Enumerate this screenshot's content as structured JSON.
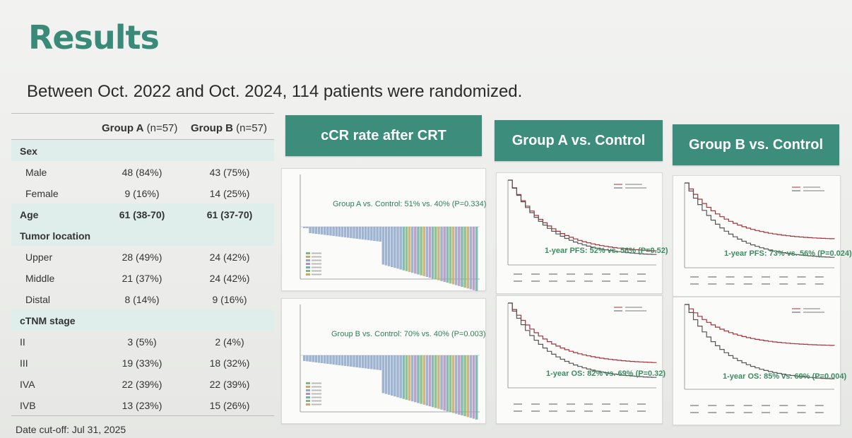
{
  "header": {
    "title": "Results",
    "subtitle": "Between Oct. 2022 and Oct. 2024, 114 patients were randomized."
  },
  "table": {
    "col_a": "Group A",
    "col_a_n": "(n=57)",
    "col_b": "Group B",
    "col_b_n": "(n=57)",
    "rows": [
      {
        "label": "Sex",
        "a": "",
        "b": "",
        "kind": "cat"
      },
      {
        "label": "Male",
        "a": "48 (84%)",
        "b": "43 (75%)",
        "kind": "sub"
      },
      {
        "label": "Female",
        "a": "9 (16%)",
        "b": "14 (25%)",
        "kind": "sub"
      },
      {
        "label": "Age",
        "a": "61 (38-70)",
        "b": "61 (37-70)",
        "kind": "cat"
      },
      {
        "label": "Tumor location",
        "a": "",
        "b": "",
        "kind": "cat"
      },
      {
        "label": "Upper",
        "a": "28 (49%)",
        "b": "24 (42%)",
        "kind": "sub"
      },
      {
        "label": "Middle",
        "a": "21 (37%)",
        "b": "24 (42%)",
        "kind": "sub"
      },
      {
        "label": "Distal",
        "a": "8 (14%)",
        "b": "9 (16%)",
        "kind": "sub"
      },
      {
        "label": "cTNM stage",
        "a": "",
        "b": "",
        "kind": "cat"
      },
      {
        "label": "II",
        "a": "3 (5%)",
        "b": "2 (4%)",
        "kind": "stage"
      },
      {
        "label": "III",
        "a": "19 (33%)",
        "b": "18 (32%)",
        "kind": "stage"
      },
      {
        "label": "IVA",
        "a": "22 (39%)",
        "b": "22 (39%)",
        "kind": "stage"
      },
      {
        "label": "IVB",
        "a": "13 (23%)",
        "b": "15 (26%)",
        "kind": "stage"
      }
    ],
    "cutoff": "Date cut-off: Jul 31, 2025"
  },
  "panels": {
    "ccr_title": "cCR rate after CRT",
    "group_a_title": "Group A vs. Control",
    "group_b_title": "Group B vs. Control"
  },
  "plots": {
    "waterfall_a_label": "Group A vs. Control: 51% vs. 40% (P=0.334)",
    "waterfall_b_label": "Group B vs. Control: 70% vs. 40% (P=0.003)",
    "km_a_pfs_label": "1-year PFS: 52% vs. 56% (P=0.52)",
    "km_b_pfs_label": "1-year PFS: 73% vs. 56% (P=0.024)",
    "km_a_os_label": "1-year OS: 82% vs. 69% (P=0.32)",
    "km_b_os_label": "1-year OS: 85% vs. 69% (P=0.004)"
  },
  "colors": {
    "accent": "#3d8d7d",
    "title": "#3a8a7a",
    "row_shade": "#dfeeea",
    "km_red": "#a3323a",
    "km_gray": "#555555"
  }
}
